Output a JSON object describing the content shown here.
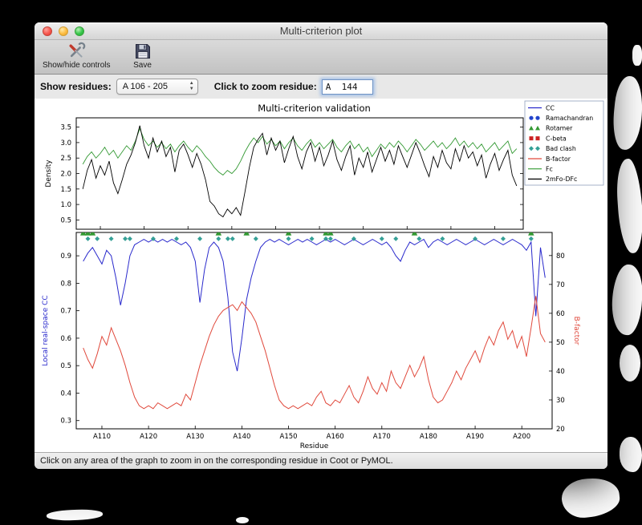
{
  "window": {
    "title": "Multi-criterion plot",
    "toolbar": {
      "show_hide_label": "Show/hide controls",
      "save_label": "Save"
    },
    "controls": {
      "show_residues_label": "Show residues:",
      "residue_range_value": "A 106 - 205",
      "zoom_label": "Click to zoom residue:",
      "zoom_value": "A  144"
    },
    "status_bar": "Click on any area of the graph to zoom in on the corresponding residue in Coot or PyMOL."
  },
  "chart_data": {
    "type": "line",
    "title": "Multi-criterion validation",
    "xlabel": "Residue",
    "x_start": 106,
    "x_end": 205,
    "x_ticks": [
      "A110",
      "A120",
      "A130",
      "A140",
      "A150",
      "A160",
      "A170",
      "A180",
      "A190",
      "A200"
    ],
    "top_plot": {
      "ylabel": "Density",
      "ylim": [
        0.2,
        3.8
      ],
      "yticks": [
        0.5,
        1.0,
        1.5,
        2.0,
        2.5,
        3.0,
        3.5
      ],
      "series": [
        {
          "name": "Fc",
          "color": "#339933",
          "values": [
            2.3,
            2.55,
            2.7,
            2.5,
            2.65,
            2.85,
            2.6,
            2.75,
            2.5,
            2.7,
            2.9,
            2.75,
            3.05,
            3.45,
            3.1,
            2.9,
            3.05,
            2.85,
            3.0,
            2.8,
            2.95,
            2.7,
            2.9,
            3.05,
            2.85,
            2.7,
            2.9,
            2.75,
            2.55,
            2.4,
            2.2,
            2.05,
            1.95,
            2.1,
            2.0,
            2.15,
            2.4,
            2.7,
            2.95,
            3.15,
            3.0,
            3.2,
            2.95,
            3.1,
            2.9,
            3.05,
            2.8,
            3.0,
            3.15,
            2.9,
            2.75,
            2.95,
            3.1,
            2.85,
            3.0,
            2.8,
            2.95,
            3.1,
            2.85,
            2.7,
            2.9,
            3.05,
            2.8,
            2.95,
            2.7,
            2.85,
            2.55,
            2.75,
            2.95,
            2.8,
            3.0,
            2.85,
            3.05,
            2.9,
            2.7,
            2.9,
            3.1,
            2.95,
            2.75,
            2.9,
            3.05,
            2.85,
            3.0,
            2.8,
            2.95,
            3.15,
            2.9,
            3.05,
            2.85,
            3.0,
            2.8,
            2.95,
            2.7,
            2.85,
            3.0,
            2.75,
            2.9,
            3.05,
            2.65,
            2.8
          ]
        },
        {
          "name": "2mFo-DFc",
          "color": "#000000",
          "values": [
            1.5,
            2.1,
            2.45,
            1.85,
            2.25,
            1.95,
            2.4,
            1.7,
            1.35,
            1.8,
            2.3,
            2.6,
            3.0,
            3.55,
            2.9,
            2.5,
            3.15,
            2.7,
            3.05,
            2.55,
            2.85,
            2.05,
            2.75,
            2.95,
            2.6,
            2.2,
            2.65,
            2.3,
            1.8,
            1.1,
            0.95,
            0.7,
            0.6,
            0.85,
            0.7,
            0.9,
            0.65,
            1.4,
            2.2,
            2.85,
            3.1,
            3.3,
            2.6,
            3.15,
            2.75,
            3.05,
            2.35,
            2.8,
            3.2,
            2.55,
            2.15,
            2.7,
            3.0,
            2.4,
            2.85,
            2.25,
            2.6,
            3.05,
            2.45,
            2.1,
            2.55,
            2.9,
            1.95,
            2.5,
            2.2,
            2.7,
            2.05,
            2.45,
            2.85,
            2.4,
            2.75,
            2.3,
            2.9,
            2.55,
            2.2,
            2.6,
            3.0,
            2.65,
            2.25,
            1.9,
            2.55,
            2.2,
            2.75,
            2.35,
            2.15,
            2.8,
            2.4,
            2.9,
            2.5,
            2.7,
            2.25,
            2.6,
            1.85,
            2.3,
            2.65,
            2.1,
            2.45,
            2.75,
            1.95,
            1.6
          ]
        }
      ]
    },
    "bottom_plot": {
      "ylabel_left": "Local real-space CC",
      "ylabel_right": "B-factor",
      "ylim_left": [
        0.27,
        0.985
      ],
      "yticks_left": [
        0.3,
        0.4,
        0.5,
        0.6,
        0.7,
        0.8,
        0.9
      ],
      "ylim_right": [
        20,
        88
      ],
      "yticks_right": [
        20,
        30,
        40,
        50,
        60,
        70,
        80
      ],
      "cc": {
        "name": "CC",
        "color": "#2929cc",
        "values": [
          0.88,
          0.91,
          0.93,
          0.9,
          0.87,
          0.92,
          0.9,
          0.82,
          0.72,
          0.8,
          0.9,
          0.94,
          0.95,
          0.96,
          0.95,
          0.96,
          0.95,
          0.96,
          0.95,
          0.96,
          0.95,
          0.94,
          0.95,
          0.93,
          0.88,
          0.73,
          0.85,
          0.93,
          0.95,
          0.93,
          0.88,
          0.75,
          0.55,
          0.48,
          0.6,
          0.74,
          0.82,
          0.88,
          0.93,
          0.95,
          0.96,
          0.95,
          0.96,
          0.95,
          0.94,
          0.95,
          0.96,
          0.95,
          0.96,
          0.95,
          0.94,
          0.95,
          0.96,
          0.95,
          0.96,
          0.95,
          0.94,
          0.95,
          0.96,
          0.95,
          0.94,
          0.95,
          0.96,
          0.95,
          0.94,
          0.95,
          0.93,
          0.9,
          0.88,
          0.92,
          0.95,
          0.94,
          0.95,
          0.96,
          0.93,
          0.95,
          0.96,
          0.95,
          0.94,
          0.95,
          0.96,
          0.95,
          0.94,
          0.95,
          0.96,
          0.95,
          0.94,
          0.95,
          0.96,
          0.95,
          0.94,
          0.95,
          0.96,
          0.95,
          0.94,
          0.92,
          0.95,
          0.68,
          0.93,
          0.82
        ]
      },
      "bfactor": {
        "name": "B-factor",
        "color": "#e0493c",
        "values": [
          48,
          44,
          41,
          46,
          52,
          49,
          55,
          51,
          47,
          42,
          36,
          31,
          28,
          27,
          28,
          27,
          29,
          28,
          27,
          28,
          29,
          28,
          32,
          30,
          36,
          42,
          47,
          52,
          56,
          59,
          61,
          62,
          63,
          61,
          64,
          62,
          60,
          57,
          52,
          47,
          41,
          35,
          30,
          28,
          27,
          28,
          27,
          28,
          29,
          28,
          31,
          33,
          29,
          28,
          30,
          29,
          32,
          35,
          31,
          29,
          33,
          38,
          34,
          32,
          36,
          33,
          40,
          36,
          34,
          38,
          42,
          38,
          41,
          45,
          37,
          31,
          29,
          30,
          33,
          36,
          40,
          37,
          41,
          44,
          47,
          43,
          48,
          52,
          49,
          54,
          57,
          51,
          54,
          48,
          52,
          45,
          55,
          66,
          53,
          50
        ]
      },
      "markers": {
        "bad_clash": {
          "color": "#35a096",
          "residues": [
            107,
            109,
            112,
            115,
            116,
            121,
            126,
            131,
            135,
            137,
            138,
            143,
            150,
            155,
            158,
            159,
            164,
            170,
            173,
            178,
            183,
            190,
            196,
            202
          ]
        },
        "rotamer": {
          "color": "#339933",
          "residues": [
            106,
            107,
            108,
            135,
            141,
            150,
            158,
            159,
            177,
            202
          ]
        },
        "ramachandran": {
          "color": "#2244cc",
          "residues": []
        },
        "cbeta": {
          "color": "#cc2222",
          "residues": []
        }
      }
    },
    "legend": [
      {
        "label": "CC",
        "type": "line",
        "color": "#2929cc"
      },
      {
        "label": "Ramachandran",
        "type": "circles",
        "color": "#2244cc"
      },
      {
        "label": "Rotamer",
        "type": "triangles",
        "color": "#339933"
      },
      {
        "label": "C-beta",
        "type": "squares",
        "color": "#cc2222"
      },
      {
        "label": "Bad clash",
        "type": "diamonds",
        "color": "#35a096"
      },
      {
        "label": "B-factor",
        "type": "line",
        "color": "#e0493c"
      },
      {
        "label": "Fc",
        "type": "line",
        "color": "#339933"
      },
      {
        "label": "2mFo-DFc",
        "type": "line",
        "color": "#000000"
      }
    ]
  }
}
